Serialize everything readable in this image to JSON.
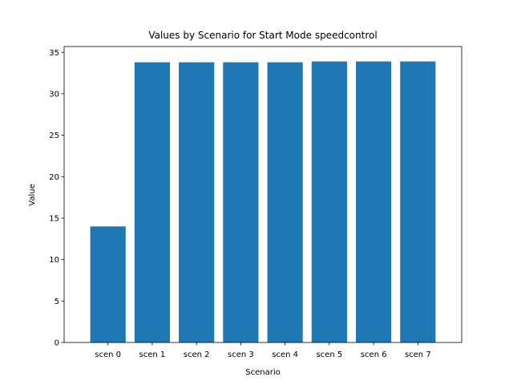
{
  "chart_data": {
    "type": "bar",
    "title": "Values by Scenario for Start Mode speedcontrol",
    "xlabel": "Scenario",
    "ylabel": "Value",
    "categories": [
      "scen 0",
      "scen 1",
      "scen 2",
      "scen 3",
      "scen 4",
      "scen 5",
      "scen 6",
      "scen 7"
    ],
    "values": [
      14.0,
      33.8,
      33.8,
      33.8,
      33.8,
      33.9,
      33.9,
      33.9
    ],
    "ylim": [
      0,
      35.7
    ],
    "yticks": [
      0,
      5,
      10,
      15,
      20,
      25,
      30,
      35
    ],
    "grid": false,
    "legend": false,
    "bar_color": "#1f77b4"
  }
}
